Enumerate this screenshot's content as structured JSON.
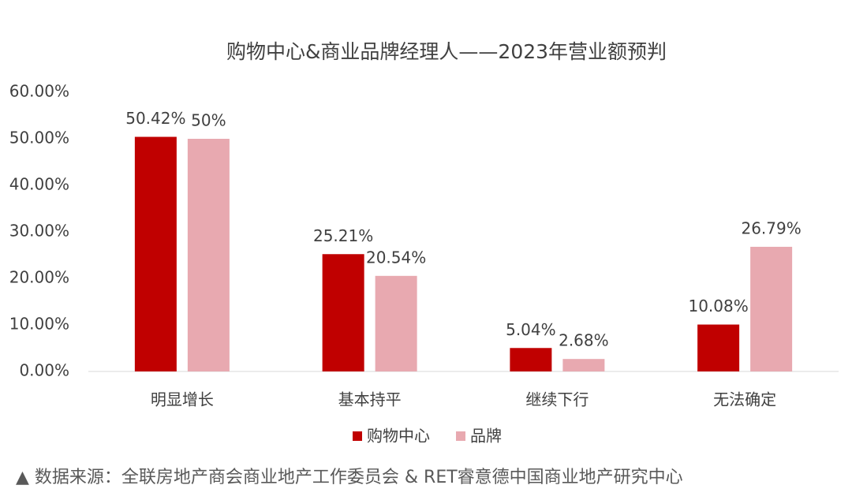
{
  "chart_data": {
    "type": "bar",
    "title": "购物中心&商业品牌经理人——2023年营业额预判",
    "categories": [
      "明显增长",
      "基本持平",
      "继续下行",
      "无法确定"
    ],
    "series": [
      {
        "name": "购物中心",
        "color": "#c00000",
        "values": [
          50.42,
          25.21,
          5.04,
          10.08
        ],
        "value_labels": [
          "50.42%",
          "25.21%",
          "5.04%",
          "10.08%"
        ]
      },
      {
        "name": "品牌",
        "color": "#e8a9b0",
        "values": [
          50,
          20.54,
          2.68,
          26.79
        ],
        "value_labels": [
          "50%",
          "20.54%",
          "2.68%",
          "26.79%"
        ]
      }
    ],
    "ylim": [
      0,
      60
    ],
    "yticks": [
      {
        "value": 0,
        "label": "0.00%"
      },
      {
        "value": 10,
        "label": "10.00%"
      },
      {
        "value": 20,
        "label": "20.00%"
      },
      {
        "value": 30,
        "label": "30.00%"
      },
      {
        "value": 40,
        "label": "40.00%"
      },
      {
        "value": 50,
        "label": "50.00%"
      },
      {
        "value": 60,
        "label": "60.00%"
      }
    ],
    "grid": false,
    "legend": "bottom",
    "source": "▲ 数据来源：全联房地产商会商业地产工作委员会 & RET睿意德中国商业地产研究中心"
  }
}
